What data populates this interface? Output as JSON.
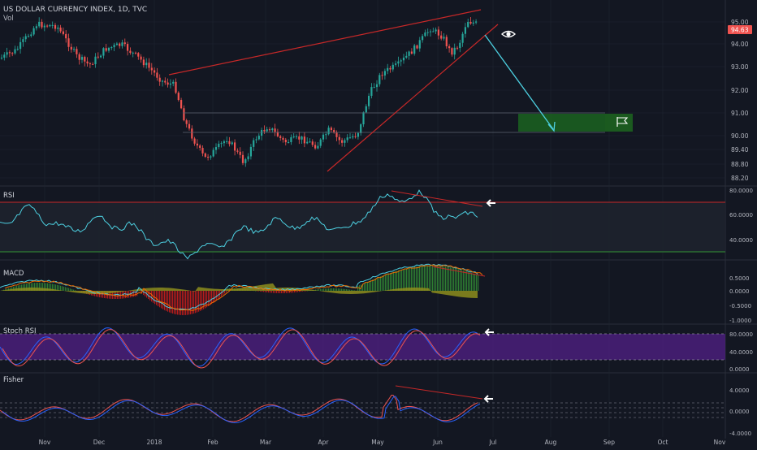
{
  "header": {
    "title": "US DOLLAR CURRENCY INDEX, 1D, TVC",
    "vol_label": "Vol"
  },
  "colors": {
    "background": "#131722",
    "grid": "#1f2532",
    "up": "#26a69a",
    "down": "#ef5350",
    "text": "#b2b5be",
    "trendline": "#c62828",
    "arrow": "#4dd0e1",
    "target_box": "#1b5e20",
    "rsi_line": "#4dd0e1",
    "stoch_k": "#2962ff",
    "stoch_d": "#ef5350",
    "stoch_band": "#4a1f7a",
    "macd_hist_up": "#2e7d32",
    "macd_hist_down": "#b71c1c",
    "macd_area": "#8d8d1c",
    "fisher_1": "#ef5350",
    "fisher_2": "#2962ff",
    "white_arrow": "#ffffff",
    "price_badge": "#ef5350"
  },
  "price_panel": {
    "last_price_label": "94.63",
    "ticks": [
      "95.00",
      "94.00",
      "93.00",
      "92.00",
      "91.00",
      "90.00",
      "89.40",
      "88.80",
      "88.20"
    ]
  },
  "indicators": {
    "rsi": {
      "label": "RSI",
      "ticks": [
        "80.0000",
        "60.0000",
        "40.0000"
      ]
    },
    "macd": {
      "label": "MACD",
      "ticks": [
        "0.5000",
        "0.0000",
        "-0.5000",
        "-1.0000"
      ]
    },
    "stoch": {
      "label": "Stoch RSI",
      "ticks": [
        "80.0000",
        "40.0000",
        "0.0000"
      ]
    },
    "fisher": {
      "label": "Fisher",
      "ticks": [
        "4.0000",
        "0.0000",
        "-4.0000"
      ]
    }
  },
  "x_axis": {
    "labels": [
      "Nov",
      "Dec",
      "2018",
      "Feb",
      "Mar",
      "Apr",
      "May",
      "Jun",
      "Jul",
      "Aug",
      "Sep",
      "Oct",
      "Nov"
    ]
  },
  "chart_data": {
    "type": "line",
    "title": "US DOLLAR CURRENCY INDEX, 1D, TVC",
    "x": [
      "Nov",
      "Dec",
      "2018",
      "Feb",
      "Mar",
      "Apr",
      "May",
      "Jun"
    ],
    "series": [
      {
        "name": "",
        "values": [
          94.5,
          93.0,
          92.5,
          89.3,
          89.7,
          89.9,
          92.5,
          94.63
        ]
      }
    ],
    "ylim": [
      88.2,
      95.4
    ],
    "last_value": 94.63
  }
}
